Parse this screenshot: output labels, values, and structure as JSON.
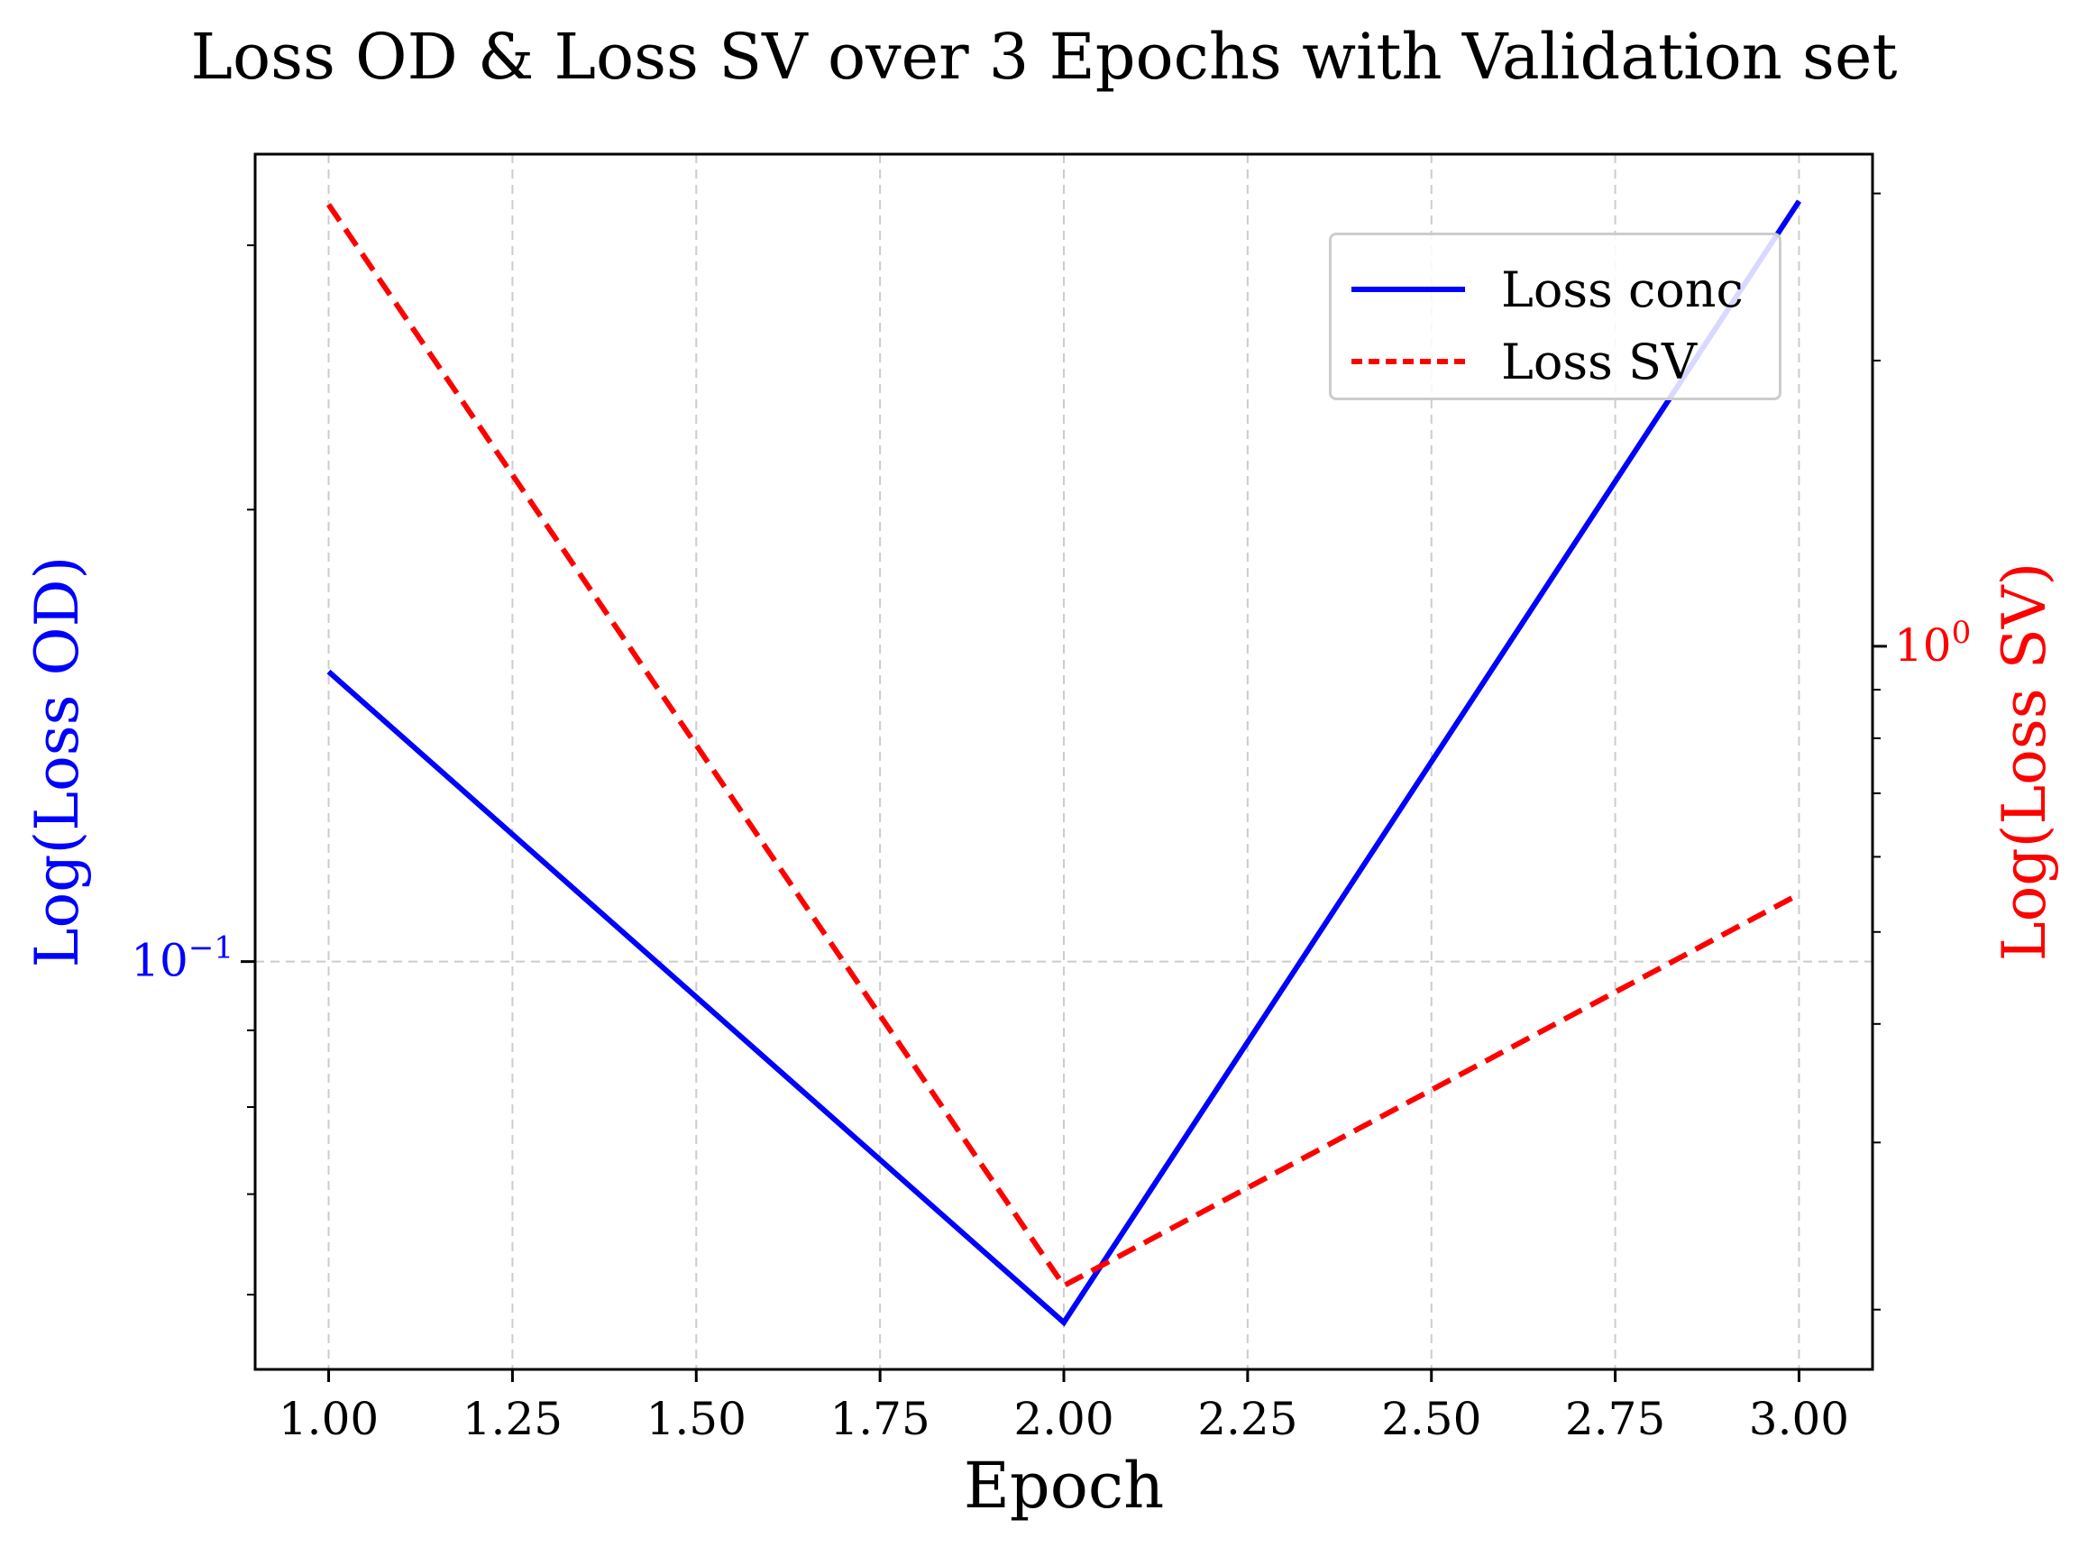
{
  "chart_data": {
    "type": "line",
    "title": "Loss OD & Loss SV over 3 Epochs with Validation set",
    "xlabel": "Epoch",
    "ylabel_left": "Log(Loss OD)",
    "ylabel_right": "Log(Loss SV)",
    "x": [
      1.0,
      2.0,
      3.0
    ],
    "xlim": [
      0.9,
      3.1
    ],
    "x_ticks": [
      "1.00",
      "1.25",
      "1.50",
      "1.75",
      "2.00",
      "2.25",
      "2.50",
      "2.75",
      "3.00"
    ],
    "y_left_scale": "log",
    "y_left_lim": [
      0.0535,
      0.345
    ],
    "y_left_tick_label": "10^-1",
    "y_right_scale": "log",
    "y_right_lim": [
      0.173,
      3.3
    ],
    "y_right_tick_label": "10^0",
    "grid": true,
    "legend_position": "upper-right",
    "series": [
      {
        "name": "Loss conc",
        "axis": "left",
        "color": "#0000ff",
        "style": "solid",
        "values": [
          0.156,
          0.0575,
          0.321
        ]
      },
      {
        "name": "Loss SV",
        "axis": "right",
        "color": "#ff0000",
        "style": "dashed",
        "values": [
          2.92,
          0.212,
          0.548
        ]
      }
    ]
  },
  "colors": {
    "left_axis": "#0000ff",
    "right_axis": "#ff0000",
    "grid": "#cccccc"
  }
}
